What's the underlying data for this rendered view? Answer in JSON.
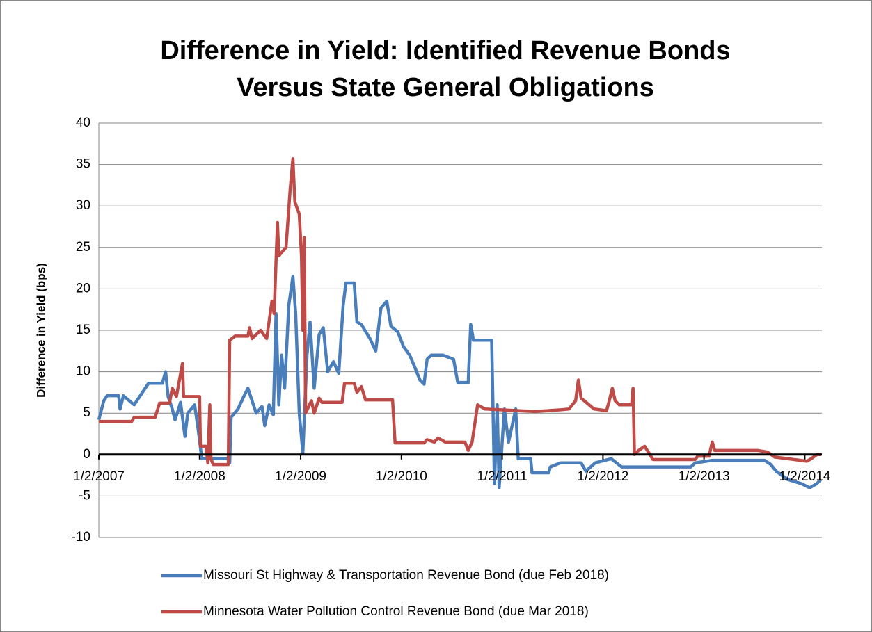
{
  "chart_data": {
    "type": "line",
    "title": [
      "Difference in Yield: Identified Revenue Bonds",
      "Versus State General Obligations"
    ],
    "y_label": "Difference in Yield (bps)",
    "xlim": [
      "2007-01-02",
      "2014-03-05"
    ],
    "xticks": [
      {
        "value": "2007-01-02",
        "label": "1/2/2007"
      },
      {
        "value": "2008-01-02",
        "label": "1/2/2008"
      },
      {
        "value": "2009-01-02",
        "label": "1/2/2009"
      },
      {
        "value": "2010-01-02",
        "label": "1/2/2010"
      },
      {
        "value": "2011-01-02",
        "label": "1/2/2011"
      },
      {
        "value": "2012-01-02",
        "label": "1/2/2012"
      },
      {
        "value": "2013-01-02",
        "label": "1/2/2013"
      },
      {
        "value": "2014-01-02",
        "label": "1/2/2014"
      }
    ],
    "ylim": [
      -10,
      40
    ],
    "yticks": [
      -10,
      -5,
      0,
      5,
      10,
      15,
      20,
      25,
      30,
      35,
      40
    ],
    "grid": true,
    "legend": "bottom",
    "series": [
      {
        "name": "Missouri St Highway & Transportation Revenue Bond (due Feb 2018)",
        "color": "#4a7ebb",
        "x": [
          "2007-01-02",
          "2007-01-20",
          "2007-02-01",
          "2007-03-15",
          "2007-03-20",
          "2007-04-01",
          "2007-05-10",
          "2007-06-01",
          "2007-07-01",
          "2007-08-20",
          "2007-09-01",
          "2007-09-10",
          "2007-09-25",
          "2007-10-05",
          "2007-10-15",
          "2007-10-25",
          "2007-11-10",
          "2007-11-20",
          "2007-12-15",
          "2007-12-28",
          "2008-01-10",
          "2008-04-15",
          "2008-04-20",
          "2008-04-25",
          "2008-05-20",
          "2008-06-10",
          "2008-06-25",
          "2008-07-10",
          "2008-07-25",
          "2008-08-15",
          "2008-08-25",
          "2008-09-10",
          "2008-09-25",
          "2008-10-05",
          "2008-10-15",
          "2008-10-25",
          "2008-11-05",
          "2008-11-20",
          "2008-12-05",
          "2008-12-15",
          "2008-12-28",
          "2009-01-10",
          "2009-01-25",
          "2009-02-05",
          "2009-02-20",
          "2009-03-10",
          "2009-03-25",
          "2009-04-10",
          "2009-05-01",
          "2009-05-20",
          "2009-06-05",
          "2009-06-15",
          "2009-07-15",
          "2009-07-25",
          "2009-08-10",
          "2009-09-10",
          "2009-10-01",
          "2009-10-20",
          "2009-11-10",
          "2009-11-25",
          "2009-12-20",
          "2010-01-10",
          "2010-02-01",
          "2010-02-20",
          "2010-03-10",
          "2010-03-25",
          "2010-04-05",
          "2010-04-20",
          "2010-06-01",
          "2010-07-10",
          "2010-07-25",
          "2010-09-01",
          "2010-09-10",
          "2010-09-20",
          "2010-11-25",
          "2010-12-05",
          "2010-12-15",
          "2010-12-22",
          "2011-01-10",
          "2011-01-25",
          "2011-02-20",
          "2011-03-01",
          "2011-04-15",
          "2011-04-20",
          "2011-06-20",
          "2011-06-25",
          "2011-08-01",
          "2011-10-15",
          "2011-11-01",
          "2011-12-05",
          "2012-02-01",
          "2012-02-20",
          "2012-03-10",
          "2012-11-15",
          "2012-12-01",
          "2013-02-01",
          "2013-08-10",
          "2013-09-01",
          "2013-09-20",
          "2013-11-01",
          "2013-12-20",
          "2014-01-20",
          "2014-02-15",
          "2014-03-01"
        ],
        "values": [
          4.2,
          6.5,
          7.1,
          7.1,
          5.5,
          7.1,
          6.0,
          7.1,
          8.6,
          8.6,
          10.0,
          7.0,
          5.5,
          4.2,
          5.2,
          6.3,
          2.2,
          5.0,
          6.0,
          3.0,
          -0.5,
          -0.5,
          -1.0,
          4.5,
          5.5,
          7.0,
          8.0,
          6.5,
          5.0,
          5.8,
          3.5,
          6.0,
          4.8,
          17.0,
          6.0,
          12.0,
          8.0,
          18.0,
          21.5,
          17.0,
          5.0,
          0.2,
          12.0,
          16.0,
          8.0,
          14.5,
          15.3,
          10.0,
          11.2,
          9.8,
          18.0,
          20.7,
          20.7,
          16.0,
          15.7,
          14.0,
          12.5,
          17.7,
          18.5,
          15.5,
          14.8,
          13.0,
          12.0,
          10.5,
          9.0,
          8.5,
          11.5,
          12.0,
          12.0,
          11.5,
          8.7,
          8.7,
          15.7,
          13.8,
          13.8,
          -3.5,
          6.0,
          -4.0,
          5.5,
          1.5,
          5.5,
          -0.5,
          -0.5,
          -2.2,
          -2.2,
          -1.5,
          -1.0,
          -1.0,
          -2.0,
          -1.0,
          -0.5,
          -1.0,
          -1.5,
          -1.5,
          -1.0,
          -0.7,
          -0.7,
          -1.2,
          -2.0,
          -3.0,
          -3.5,
          -4.0,
          -3.5,
          -3.0
        ]
      },
      {
        "name": "Minnesota Water Pollution Control Revenue Bond (due Mar 2018)",
        "color": "#be4b48",
        "x": [
          "2007-01-02",
          "2007-05-01",
          "2007-05-10",
          "2007-07-25",
          "2007-08-10",
          "2007-09-15",
          "2007-09-25",
          "2007-10-10",
          "2007-11-01",
          "2007-11-05",
          "2008-01-02",
          "2008-01-05",
          "2008-01-25",
          "2008-02-01",
          "2008-02-08",
          "2008-02-12",
          "2008-02-20",
          "2008-04-15",
          "2008-04-20",
          "2008-05-10",
          "2008-06-25",
          "2008-07-01",
          "2008-07-10",
          "2008-08-10",
          "2008-09-01",
          "2008-09-20",
          "2008-09-28",
          "2008-10-10",
          "2008-10-15",
          "2008-11-10",
          "2008-11-25",
          "2008-12-05",
          "2008-12-12",
          "2008-12-28",
          "2009-01-05",
          "2009-01-10",
          "2009-01-15",
          "2009-01-20",
          "2009-02-10",
          "2009-02-20",
          "2009-03-10",
          "2009-03-20",
          "2009-06-01",
          "2009-06-10",
          "2009-07-15",
          "2009-07-25",
          "2009-08-10",
          "2009-08-25",
          "2009-12-01",
          "2009-12-10",
          "2010-03-25",
          "2010-04-05",
          "2010-05-01",
          "2010-05-15",
          "2010-06-10",
          "2010-08-20",
          "2010-09-01",
          "2010-09-15",
          "2010-10-05",
          "2010-11-01",
          "2011-03-01",
          "2011-05-01",
          "2011-08-01",
          "2011-09-01",
          "2011-09-25",
          "2011-10-05",
          "2011-10-15",
          "2011-12-01",
          "2012-01-15",
          "2012-01-25",
          "2012-02-05",
          "2012-02-15",
          "2012-03-01",
          "2012-04-15",
          "2012-04-20",
          "2012-04-25",
          "2012-05-10",
          "2012-06-01",
          "2012-06-20",
          "2012-07-01",
          "2012-12-01",
          "2012-12-10",
          "2013-01-20",
          "2013-02-01",
          "2013-02-10",
          "2013-07-15",
          "2013-08-20",
          "2013-09-15",
          "2013-11-01",
          "2014-01-10",
          "2014-01-25",
          "2014-02-15",
          "2014-03-01"
        ],
        "values": [
          4.0,
          4.0,
          4.5,
          4.5,
          6.2,
          6.2,
          8.0,
          7.0,
          11.0,
          7.0,
          7.0,
          1.0,
          1.0,
          -1.0,
          6.0,
          -0.5,
          -1.2,
          -1.2,
          13.8,
          14.3,
          14.3,
          15.3,
          14.0,
          15.0,
          14.0,
          18.5,
          17.0,
          28.0,
          24.0,
          25.0,
          32.0,
          35.7,
          30.5,
          29.0,
          24.0,
          15.0,
          26.2,
          5.0,
          6.5,
          5.0,
          6.8,
          6.3,
          6.3,
          8.6,
          8.6,
          7.5,
          8.2,
          6.6,
          6.6,
          1.4,
          1.4,
          1.8,
          1.5,
          2.0,
          1.5,
          1.5,
          0.5,
          1.5,
          6.0,
          5.5,
          5.3,
          5.2,
          5.4,
          5.5,
          6.5,
          9.0,
          6.8,
          5.5,
          5.3,
          6.5,
          8.0,
          6.5,
          6.0,
          6.0,
          8.0,
          0.0,
          0.5,
          1.0,
          0.0,
          -0.6,
          -0.6,
          -0.2,
          -0.2,
          1.5,
          0.5,
          0.5,
          0.3,
          -0.3,
          -0.5,
          -0.8,
          -0.5,
          0.0,
          0.0
        ]
      }
    ]
  }
}
